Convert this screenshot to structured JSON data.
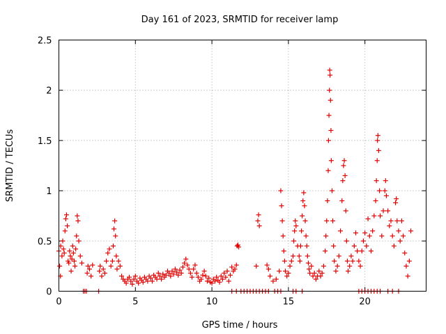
{
  "chart_data": {
    "type": "scatter",
    "title": "Day 161 of 2023, SRMTID for receiver lamp",
    "xlabel": "GPS time / hours",
    "ylabel": "SRMTID / TECUs",
    "xlim": [
      0,
      24
    ],
    "ylim": [
      0,
      2.5
    ],
    "xticks": [
      0,
      5,
      10,
      15,
      20
    ],
    "yticks": [
      0,
      0.5,
      1,
      1.5,
      2,
      2.5
    ],
    "xtick_labels": [
      "0",
      "5",
      "10",
      "15",
      "20"
    ],
    "ytick_labels": [
      "0",
      "0.5",
      "1",
      "1.5",
      "2",
      "2.5"
    ],
    "grid": true,
    "marker": "plus",
    "series": [
      {
        "name": "SRMTID",
        "color": "#e00000",
        "points": [
          [
            0.0,
            0.4
          ],
          [
            0.05,
            0.25
          ],
          [
            0.1,
            0.15
          ],
          [
            0.12,
            0.45
          ],
          [
            0.2,
            0.35
          ],
          [
            0.25,
            0.5
          ],
          [
            0.3,
            0.42
          ],
          [
            0.35,
            0.38
          ],
          [
            0.4,
            0.6
          ],
          [
            0.45,
            0.72
          ],
          [
            0.5,
            0.76
          ],
          [
            0.55,
            0.65
          ],
          [
            0.6,
            0.3
          ],
          [
            0.65,
            0.28
          ],
          [
            0.7,
            0.4
          ],
          [
            0.75,
            0.35
          ],
          [
            0.8,
            0.2
          ],
          [
            0.85,
            0.32
          ],
          [
            0.9,
            0.45
          ],
          [
            0.95,
            0.38
          ],
          [
            1.0,
            0.3
          ],
          [
            1.05,
            0.25
          ],
          [
            1.1,
            0.42
          ],
          [
            1.15,
            0.55
          ],
          [
            1.2,
            0.75
          ],
          [
            1.25,
            0.7
          ],
          [
            1.3,
            0.5
          ],
          [
            1.4,
            0.35
          ],
          [
            1.5,
            0.28
          ],
          [
            1.6,
            0.0
          ],
          [
            1.7,
            0.0
          ],
          [
            1.8,
            0.0
          ],
          [
            1.85,
            0.18
          ],
          [
            1.9,
            0.25
          ],
          [
            2.0,
            0.22
          ],
          [
            2.1,
            0.15
          ],
          [
            2.2,
            0.26
          ],
          [
            2.6,
            0.0
          ],
          [
            2.65,
            0.2
          ],
          [
            2.7,
            0.25
          ],
          [
            2.8,
            0.15
          ],
          [
            2.9,
            0.22
          ],
          [
            3.0,
            0.18
          ],
          [
            3.1,
            0.3
          ],
          [
            3.2,
            0.38
          ],
          [
            3.3,
            0.42
          ],
          [
            3.4,
            0.25
          ],
          [
            3.5,
            0.3
          ],
          [
            3.55,
            0.45
          ],
          [
            3.6,
            0.62
          ],
          [
            3.65,
            0.7
          ],
          [
            3.7,
            0.55
          ],
          [
            3.75,
            0.35
          ],
          [
            3.8,
            0.22
          ],
          [
            3.9,
            0.3
          ],
          [
            4.0,
            0.25
          ],
          [
            4.1,
            0.15
          ],
          [
            4.2,
            0.12
          ],
          [
            4.3,
            0.1
          ],
          [
            4.4,
            0.08
          ],
          [
            4.5,
            0.12
          ],
          [
            4.6,
            0.14
          ],
          [
            4.7,
            0.1
          ],
          [
            4.8,
            0.07
          ],
          [
            4.9,
            0.12
          ],
          [
            5.0,
            0.15
          ],
          [
            5.1,
            0.1
          ],
          [
            5.2,
            0.08
          ],
          [
            5.3,
            0.13
          ],
          [
            5.4,
            0.11
          ],
          [
            5.5,
            0.09
          ],
          [
            5.6,
            0.14
          ],
          [
            5.7,
            0.12
          ],
          [
            5.8,
            0.1
          ],
          [
            5.9,
            0.15
          ],
          [
            6.0,
            0.13
          ],
          [
            6.1,
            0.1
          ],
          [
            6.2,
            0.16
          ],
          [
            6.3,
            0.14
          ],
          [
            6.4,
            0.12
          ],
          [
            6.5,
            0.18
          ],
          [
            6.6,
            0.15
          ],
          [
            6.7,
            0.12
          ],
          [
            6.8,
            0.17
          ],
          [
            6.9,
            0.14
          ],
          [
            7.0,
            0.16
          ],
          [
            7.1,
            0.2
          ],
          [
            7.2,
            0.18
          ],
          [
            7.3,
            0.15
          ],
          [
            7.4,
            0.2
          ],
          [
            7.5,
            0.17
          ],
          [
            7.6,
            0.22
          ],
          [
            7.7,
            0.19
          ],
          [
            7.8,
            0.16
          ],
          [
            7.9,
            0.21
          ],
          [
            8.0,
            0.18
          ],
          [
            8.1,
            0.24
          ],
          [
            8.2,
            0.28
          ],
          [
            8.3,
            0.32
          ],
          [
            8.4,
            0.26
          ],
          [
            8.5,
            0.22
          ],
          [
            8.6,
            0.18
          ],
          [
            8.7,
            0.14
          ],
          [
            8.8,
            0.22
          ],
          [
            8.9,
            0.26
          ],
          [
            9.0,
            0.18
          ],
          [
            9.1,
            0.14
          ],
          [
            9.2,
            0.1
          ],
          [
            9.3,
            0.12
          ],
          [
            9.4,
            0.16
          ],
          [
            9.5,
            0.2
          ],
          [
            9.6,
            0.15
          ],
          [
            9.7,
            0.1
          ],
          [
            9.8,
            0.13
          ],
          [
            9.9,
            0.09
          ],
          [
            10.0,
            0.08
          ],
          [
            10.1,
            0.12
          ],
          [
            10.2,
            0.1
          ],
          [
            10.3,
            0.14
          ],
          [
            10.4,
            0.11
          ],
          [
            10.5,
            0.09
          ],
          [
            10.6,
            0.15
          ],
          [
            10.7,
            0.12
          ],
          [
            10.8,
            0.18
          ],
          [
            10.9,
            0.14
          ],
          [
            11.0,
            0.2
          ],
          [
            11.1,
            0.1
          ],
          [
            11.2,
            0.16
          ],
          [
            11.3,
            0.24
          ],
          [
            11.4,
            0.2
          ],
          [
            11.5,
            0.22
          ],
          [
            11.6,
            0.26
          ],
          [
            11.65,
            0.45
          ],
          [
            11.7,
            0.46
          ],
          [
            11.75,
            0.44
          ],
          [
            11.3,
            0.0
          ],
          [
            11.6,
            0.0
          ],
          [
            11.9,
            0.0
          ],
          [
            12.1,
            0.0
          ],
          [
            12.3,
            0.0
          ],
          [
            12.5,
            0.0
          ],
          [
            12.7,
            0.0
          ],
          [
            12.9,
            0.0
          ],
          [
            13.1,
            0.0
          ],
          [
            13.3,
            0.0
          ],
          [
            13.5,
            0.0
          ],
          [
            13.7,
            0.0
          ],
          [
            14.1,
            0.0
          ],
          [
            14.3,
            0.0
          ],
          [
            14.5,
            0.0
          ],
          [
            12.9,
            0.25
          ],
          [
            13.0,
            0.7
          ],
          [
            13.05,
            0.76
          ],
          [
            13.1,
            0.65
          ],
          [
            13.6,
            0.26
          ],
          [
            13.7,
            0.22
          ],
          [
            13.8,
            0.15
          ],
          [
            14.0,
            0.1
          ],
          [
            14.2,
            0.12
          ],
          [
            14.4,
            0.2
          ],
          [
            14.5,
            1.0
          ],
          [
            14.55,
            0.85
          ],
          [
            14.6,
            0.7
          ],
          [
            14.65,
            0.55
          ],
          [
            14.7,
            0.4
          ],
          [
            14.75,
            0.3
          ],
          [
            14.8,
            0.2
          ],
          [
            14.9,
            0.15
          ],
          [
            15.0,
            0.18
          ],
          [
            15.1,
            0.25
          ],
          [
            15.2,
            0.3
          ],
          [
            15.3,
            0.35
          ],
          [
            15.35,
            0.5
          ],
          [
            15.4,
            0.6
          ],
          [
            15.45,
            0.7
          ],
          [
            15.5,
            0.65
          ],
          [
            15.6,
            0.45
          ],
          [
            15.7,
            0.35
          ],
          [
            15.75,
            0.3
          ],
          [
            15.8,
            0.45
          ],
          [
            15.85,
            0.6
          ],
          [
            15.9,
            0.75
          ],
          [
            15.95,
            0.9
          ],
          [
            16.0,
            0.98
          ],
          [
            16.05,
            0.85
          ],
          [
            16.1,
            0.7
          ],
          [
            16.15,
            0.55
          ],
          [
            16.2,
            0.45
          ],
          [
            16.25,
            0.35
          ],
          [
            16.3,
            0.28
          ],
          [
            16.35,
            0.22
          ],
          [
            16.4,
            0.18
          ],
          [
            16.5,
            0.25
          ],
          [
            16.6,
            0.15
          ],
          [
            16.7,
            0.18
          ],
          [
            16.8,
            0.12
          ],
          [
            16.9,
            0.15
          ],
          [
            17.0,
            0.2
          ],
          [
            17.1,
            0.15
          ],
          [
            17.2,
            0.18
          ],
          [
            17.3,
            0.25
          ],
          [
            17.4,
            0.4
          ],
          [
            17.45,
            0.55
          ],
          [
            17.5,
            0.7
          ],
          [
            17.55,
            0.9
          ],
          [
            17.6,
            1.2
          ],
          [
            17.62,
            1.5
          ],
          [
            17.65,
            1.75
          ],
          [
            17.68,
            2.0
          ],
          [
            17.7,
            2.2
          ],
          [
            17.72,
            2.15
          ],
          [
            17.75,
            1.9
          ],
          [
            17.78,
            1.6
          ],
          [
            17.8,
            1.3
          ],
          [
            17.85,
            1.0
          ],
          [
            17.9,
            0.7
          ],
          [
            17.95,
            0.45
          ],
          [
            18.0,
            0.3
          ],
          [
            18.1,
            0.2
          ],
          [
            18.2,
            0.25
          ],
          [
            18.3,
            0.35
          ],
          [
            18.4,
            0.6
          ],
          [
            18.5,
            0.9
          ],
          [
            18.55,
            1.1
          ],
          [
            18.6,
            1.25
          ],
          [
            18.65,
            1.3
          ],
          [
            18.7,
            1.15
          ],
          [
            18.75,
            0.8
          ],
          [
            18.8,
            0.5
          ],
          [
            18.85,
            0.3
          ],
          [
            18.9,
            0.2
          ],
          [
            19.0,
            0.25
          ],
          [
            19.1,
            0.35
          ],
          [
            19.2,
            0.3
          ],
          [
            19.3,
            0.45
          ],
          [
            19.4,
            0.58
          ],
          [
            19.5,
            0.4
          ],
          [
            19.6,
            0.3
          ],
          [
            19.7,
            0.25
          ],
          [
            19.8,
            0.4
          ],
          [
            19.9,
            0.5
          ],
          [
            20.0,
            0.58
          ],
          [
            20.1,
            0.45
          ],
          [
            20.2,
            0.72
          ],
          [
            20.3,
            0.55
          ],
          [
            20.4,
            0.4
          ],
          [
            20.5,
            0.6
          ],
          [
            20.6,
            0.75
          ],
          [
            20.7,
            0.9
          ],
          [
            20.75,
            1.1
          ],
          [
            20.8,
            1.3
          ],
          [
            20.82,
            1.5
          ],
          [
            20.85,
            1.55
          ],
          [
            20.9,
            1.4
          ],
          [
            20.95,
            1.0
          ],
          [
            21.0,
            0.75
          ],
          [
            21.1,
            0.55
          ],
          [
            21.2,
            0.8
          ],
          [
            21.3,
            1.0
          ],
          [
            21.35,
            1.1
          ],
          [
            21.4,
            0.95
          ],
          [
            21.5,
            0.8
          ],
          [
            21.6,
            0.65
          ],
          [
            21.7,
            0.7
          ],
          [
            21.8,
            0.55
          ],
          [
            21.9,
            0.45
          ],
          [
            22.0,
            0.88
          ],
          [
            22.05,
            0.92
          ],
          [
            22.1,
            0.7
          ],
          [
            22.2,
            0.6
          ],
          [
            22.3,
            0.5
          ],
          [
            22.4,
            0.7
          ],
          [
            22.5,
            0.55
          ],
          [
            22.6,
            0.38
          ],
          [
            22.7,
            0.25
          ],
          [
            22.8,
            0.15
          ],
          [
            22.9,
            0.3
          ],
          [
            23.0,
            0.6
          ],
          [
            15.3,
            0.0
          ],
          [
            15.5,
            0.0
          ],
          [
            15.9,
            0.0
          ],
          [
            19.6,
            0.0
          ],
          [
            19.8,
            0.0
          ],
          [
            20.0,
            0.0
          ],
          [
            20.2,
            0.0
          ],
          [
            20.4,
            0.0
          ],
          [
            20.6,
            0.0
          ],
          [
            20.8,
            0.0
          ],
          [
            21.0,
            0.0
          ],
          [
            21.5,
            0.0
          ],
          [
            21.8,
            0.0
          ],
          [
            22.2,
            0.0
          ]
        ]
      }
    ]
  }
}
